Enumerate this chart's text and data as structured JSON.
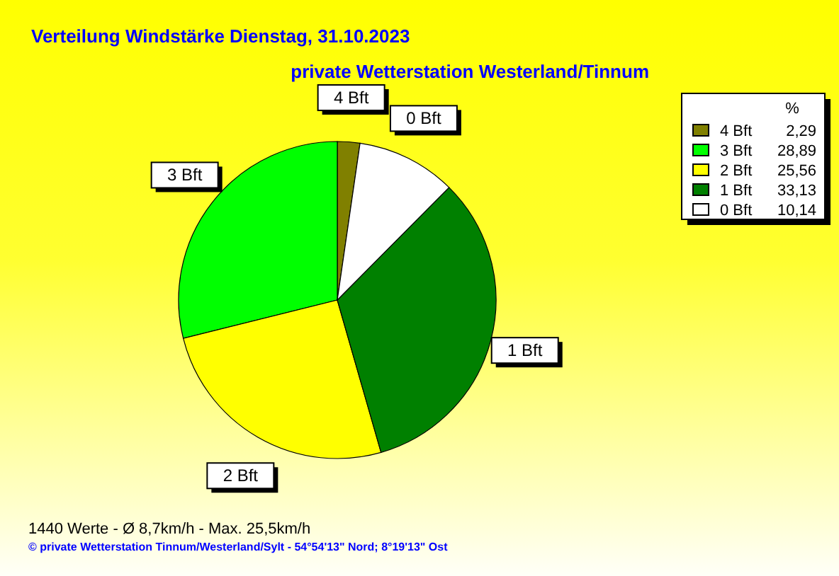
{
  "chart_data": {
    "type": "pie",
    "title": "Verteilung Windstärke  Dienstag, 31.10.2023",
    "subtitle": "private Wetterstation Westerland/Tinnum",
    "legend_title": "%",
    "categories": [
      "4 Bft",
      "3 Bft",
      "2 Bft",
      "1 Bft",
      "0 Bft"
    ],
    "values": [
      2.29,
      28.89,
      25.56,
      33.13,
      10.14
    ],
    "value_labels": [
      "2,29",
      "28,89",
      "25,56",
      "33,13",
      "10,14"
    ],
    "colors": [
      "#808000",
      "#00ff00",
      "#ffff00",
      "#008000",
      "#ffffff"
    ],
    "legend": "top right",
    "annotations": [
      "1440 Werte   -   Ø 8,7km/h  -  Max. 25,5km/h",
      "© private Wetterstation Tinnum/Westerland/Sylt  -  54°54'13\" Nord; 8°19'13\" Ost"
    ]
  }
}
